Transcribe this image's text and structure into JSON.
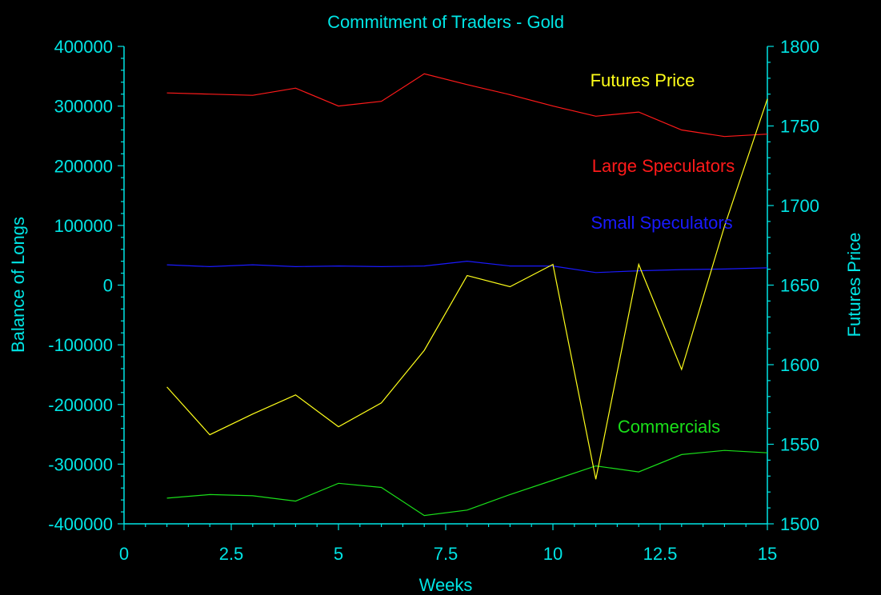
{
  "chart_data": {
    "type": "line",
    "title": "Commitment of Traders - Gold",
    "xlabel": "Weeks",
    "ylabel_left": "Balance of Longs",
    "ylabel_right": "Futures Price",
    "x": [
      1,
      2,
      3,
      4,
      5,
      6,
      7,
      8,
      9,
      10,
      11,
      12,
      13,
      14,
      15
    ],
    "xlim": [
      0,
      15
    ],
    "ylim_left": [
      -400000,
      400000
    ],
    "ylim_right": [
      1500,
      1800
    ],
    "x_ticks": [
      "0",
      "2.5",
      "5",
      "7.5",
      "10",
      "12.5",
      "15"
    ],
    "y_left_ticks": [
      "400000",
      "300000",
      "200000",
      "100000",
      "0",
      "-100000",
      "-200000",
      "-300000",
      "-400000"
    ],
    "y_right_ticks": [
      "1800",
      "1750",
      "1700",
      "1650",
      "1600",
      "1550",
      "1500"
    ],
    "series": [
      {
        "name": "Large Speculators",
        "axis": "left",
        "color": "#ff1a1a",
        "values": [
          322000,
          320000,
          318000,
          330000,
          300000,
          308000,
          354000,
          336000,
          319000,
          300000,
          283000,
          290000,
          260000,
          249000,
          253000
        ]
      },
      {
        "name": "Small Speculators",
        "axis": "left",
        "color": "#1a1aff",
        "values": [
          34000,
          31000,
          34000,
          31000,
          32000,
          31000,
          32000,
          40000,
          32000,
          32000,
          21000,
          24000,
          26000,
          27000,
          29000
        ]
      },
      {
        "name": "Commercials",
        "axis": "left",
        "color": "#1adf1a",
        "values": [
          -357000,
          -351000,
          -353000,
          -362000,
          -332000,
          -339000,
          -386000,
          -377000,
          -351000,
          -327000,
          -303000,
          -313000,
          -284000,
          -277000,
          -281000
        ]
      },
      {
        "name": "Futures Price",
        "axis": "right",
        "color": "#ffff1a",
        "values": [
          1586,
          1556,
          1569,
          1581,
          1561,
          1576,
          1609,
          1656,
          1649,
          1663,
          1528,
          1663,
          1597,
          1687,
          1767
        ]
      }
    ],
    "legend_labels": [
      "Futures Price",
      "Large Speculators",
      "Small Speculators",
      "Commercials"
    ],
    "grid": false
  }
}
